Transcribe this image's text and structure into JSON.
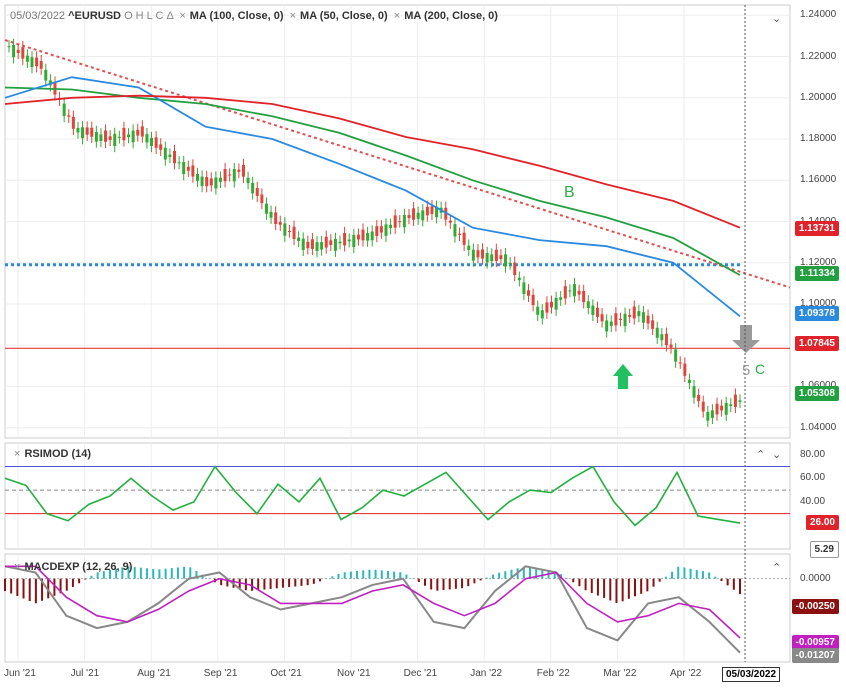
{
  "header": {
    "date": "05/03/2022",
    "symbol": "^EURUSD",
    "ohlc": "O H L C Δ",
    "studies": [
      "MA (100, Close, 0)",
      "MA (50, Close, 0)",
      "MA (200, Close, 0)"
    ]
  },
  "panes": {
    "rsi_title": "RSIMOD (14)",
    "macd_title": "MACDEXP (12, 26, 9)"
  },
  "annotations": {
    "b": "B",
    "c": "C",
    "five": "5"
  },
  "price_tags": [
    {
      "label": "1.13731",
      "color": "#e0222a"
    },
    {
      "label": "1.11334",
      "color": "#22a040"
    },
    {
      "label": "1.09378",
      "color": "#2a8ae0"
    },
    {
      "label": "1.07845",
      "color": "#e0222a"
    },
    {
      "label": "1.05308",
      "color": "#22a040"
    }
  ],
  "rsi_tags": [
    {
      "label": "26.00",
      "color": "#e0222a"
    },
    {
      "label": "5.29",
      "color": "#ffffff"
    }
  ],
  "macd_tags": [
    {
      "label": "-0.00250",
      "color": "#8b1010"
    },
    {
      "label": "-0.00957",
      "color": "#c020c0"
    },
    {
      "label": "-0.01207",
      "color": "#888888"
    }
  ],
  "current_date_label": "05/03/2022",
  "chart_data": [
    {
      "type": "line",
      "title": "^EURUSD",
      "y_ticks": [
        "1.24000",
        "1.22000",
        "1.20000",
        "1.18000",
        "1.16000",
        "1.14000",
        "1.12000",
        "1.10000",
        "1.08000",
        "1.06000",
        "1.04000"
      ],
      "ylim": [
        1.035,
        1.245
      ],
      "x_ticks": [
        "Jun '21",
        "Jul '21",
        "Aug '21",
        "Sep '21",
        "Oct '21",
        "Nov '21",
        "Dec '21",
        "Jan '22",
        "Feb '22",
        "Mar '22",
        "Apr '22"
      ],
      "series": [
        {
          "name": "MA (100, Close, 0)",
          "color": "#22a040",
          "values": [
            1.205,
            1.204,
            1.2,
            1.197,
            1.191,
            1.183,
            1.172,
            1.16,
            1.15,
            1.142,
            1.132,
            1.114
          ]
        },
        {
          "name": "MA (50, Close, 0)",
          "color": "#2a8ae0",
          "values": [
            1.2,
            1.21,
            1.205,
            1.186,
            1.18,
            1.168,
            1.155,
            1.137,
            1.131,
            1.128,
            1.12,
            1.094
          ]
        },
        {
          "name": "MA (200, Close, 0)",
          "color": "#e0222a",
          "values": [
            1.197,
            1.2,
            1.201,
            1.2,
            1.197,
            1.19,
            1.181,
            1.175,
            1.167,
            1.158,
            1.15,
            1.137
          ]
        },
        {
          "name": "EURUSD Close",
          "color": "#33aa33",
          "values": [
            1.225,
            1.215,
            1.185,
            1.18,
            1.183,
            1.17,
            1.158,
            1.165,
            1.141,
            1.128,
            1.13,
            1.134,
            1.142,
            1.146,
            1.124,
            1.122,
            1.095,
            1.108,
            1.09,
            1.096,
            1.078,
            1.046,
            1.053
          ]
        }
      ],
      "horizontal_lines": [
        1.0785,
        1.119
      ],
      "trendline": {
        "from": 1.228,
        "to": 1.108
      }
    },
    {
      "type": "line",
      "title": "RSIMOD (14)",
      "y_ticks": [
        "80.00",
        "60.00",
        "40.00"
      ],
      "ylim": [
        0,
        90
      ],
      "levels": [
        70,
        50,
        30
      ],
      "series": [
        {
          "name": "RSIMOD (14)",
          "values": [
            60,
            54,
            30,
            24,
            38,
            45,
            60,
            45,
            33,
            40,
            70,
            48,
            30,
            55,
            40,
            60,
            25,
            35,
            50,
            45,
            55,
            65,
            45,
            25,
            40,
            50,
            48,
            60,
            70,
            40,
            20,
            35,
            65,
            28,
            25,
            22
          ]
        }
      ]
    },
    {
      "type": "bar",
      "title": "MACDEXP (12, 26, 9)",
      "y_ticks": [
        "0.0000"
      ],
      "ylim": [
        -0.0135,
        0.004
      ],
      "histogram": [
        -0.002,
        -0.004,
        -0.002,
        0.001,
        0.002,
        0.0015,
        0.002,
        -0.001,
        -0.002,
        -0.0015,
        -0.001,
        0.001,
        0.0015,
        0.001,
        -0.002,
        -0.0015,
        0.0008,
        0.002,
        0.0012,
        -0.002,
        -0.004,
        -0.002,
        0.002,
        0.001,
        -0.0025
      ],
      "series": [
        {
          "name": "MACD",
          "values": [
            0.002,
            0.001,
            -0.006,
            -0.008,
            -0.007,
            -0.004,
            0.0,
            0.001,
            -0.003,
            -0.005,
            -0.004,
            -0.003,
            -0.001,
            0.0,
            -0.007,
            -0.008,
            -0.002,
            0.002,
            0.001,
            -0.008,
            -0.01,
            -0.004,
            -0.003,
            -0.007,
            -0.012
          ]
        },
        {
          "name": "Signal",
          "values": [
            0.002,
            0.002,
            -0.003,
            -0.006,
            -0.007,
            -0.005,
            -0.002,
            0.0,
            -0.001,
            -0.004,
            -0.004,
            -0.004,
            -0.002,
            -0.001,
            -0.004,
            -0.006,
            -0.004,
            0.0,
            0.001,
            -0.004,
            -0.007,
            -0.006,
            -0.004,
            -0.005,
            -0.0096
          ]
        }
      ]
    }
  ]
}
